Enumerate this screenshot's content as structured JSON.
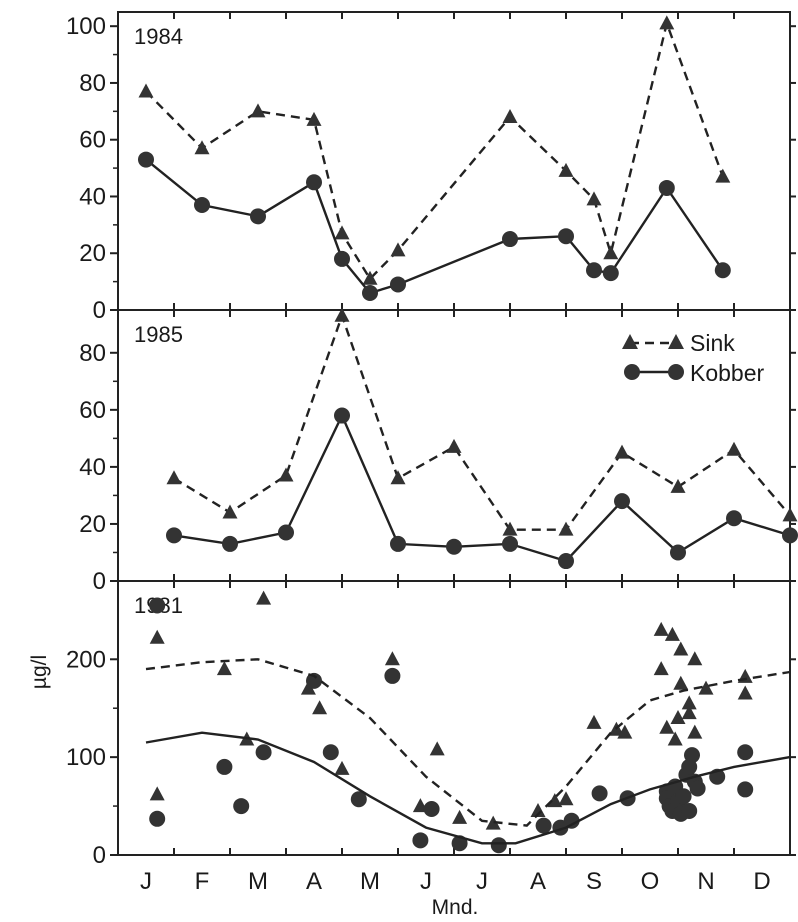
{
  "chart_data": [
    {
      "type": "line",
      "title": "1984",
      "x_type": "month",
      "ylim": [
        0,
        105
      ],
      "yticks": [
        "0",
        "20",
        "40",
        "60",
        "80",
        "100"
      ],
      "series": [
        {
          "name": "Sink",
          "marker": "triangle",
          "line": "dashed",
          "points": [
            [
              0.0,
              77
            ],
            [
              1.0,
              57
            ],
            [
              2.0,
              70
            ],
            [
              3.0,
              67
            ],
            [
              3.5,
              27
            ],
            [
              4.0,
              11
            ],
            [
              4.5,
              21
            ],
            [
              6.5,
              68
            ],
            [
              7.5,
              49
            ],
            [
              8.0,
              39
            ],
            [
              8.3,
              20
            ],
            [
              9.3,
              101
            ],
            [
              10.3,
              47
            ]
          ]
        },
        {
          "name": "Kobber",
          "marker": "circle",
          "line": "solid",
          "points": [
            [
              0.0,
              53
            ],
            [
              1.0,
              37
            ],
            [
              2.0,
              33
            ],
            [
              3.0,
              45
            ],
            [
              3.5,
              18
            ],
            [
              4.0,
              6
            ],
            [
              4.5,
              9
            ],
            [
              6.5,
              25
            ],
            [
              7.5,
              26
            ],
            [
              8.0,
              14
            ],
            [
              8.3,
              13
            ],
            [
              9.3,
              43
            ],
            [
              10.3,
              14
            ]
          ]
        }
      ]
    },
    {
      "type": "line",
      "title": "1985",
      "x_type": "month",
      "ylim": [
        0,
        95
      ],
      "yticks": [
        "0",
        "20",
        "40",
        "60",
        "80"
      ],
      "legend": {
        "position": "top-right",
        "entries": [
          "Sink",
          "Kobber"
        ]
      },
      "series": [
        {
          "name": "Sink",
          "marker": "triangle",
          "line": "dashed",
          "points": [
            [
              0.5,
              36
            ],
            [
              1.5,
              24
            ],
            [
              2.5,
              37
            ],
            [
              3.5,
              93
            ],
            [
              4.5,
              36
            ],
            [
              5.5,
              47
            ],
            [
              6.5,
              18
            ],
            [
              7.5,
              18
            ],
            [
              8.5,
              45
            ],
            [
              9.5,
              33
            ],
            [
              10.5,
              46
            ],
            [
              11.5,
              23
            ]
          ]
        },
        {
          "name": "Kobber",
          "marker": "circle",
          "line": "solid",
          "points": [
            [
              0.5,
              16
            ],
            [
              1.5,
              13
            ],
            [
              2.5,
              17
            ],
            [
              3.5,
              58
            ],
            [
              4.5,
              13
            ],
            [
              5.5,
              12
            ],
            [
              6.5,
              13
            ],
            [
              7.5,
              7
            ],
            [
              8.5,
              28
            ],
            [
              9.5,
              10
            ],
            [
              10.5,
              22
            ],
            [
              11.5,
              16
            ]
          ]
        }
      ]
    },
    {
      "type": "scatter",
      "title": "1981",
      "x_type": "month",
      "ylabel": "µg/l",
      "xlabel": "Mnd.",
      "ylim": [
        0,
        280
      ],
      "yticks": [
        "0",
        "100",
        "200"
      ],
      "categories": [
        "J",
        "F",
        "M",
        "A",
        "M",
        "J",
        "J",
        "A",
        "S",
        "O",
        "N",
        "D"
      ],
      "series": [
        {
          "name": "Sink",
          "marker": "triangle",
          "points": [
            [
              0.2,
              222
            ],
            [
              0.2,
              62
            ],
            [
              1.4,
              190
            ],
            [
              1.8,
              118
            ],
            [
              2.1,
              262
            ],
            [
              2.9,
              170
            ],
            [
              3.1,
              150
            ],
            [
              3.5,
              88
            ],
            [
              4.4,
              200
            ],
            [
              4.9,
              50
            ],
            [
              5.2,
              108
            ],
            [
              5.6,
              38
            ],
            [
              6.2,
              32
            ],
            [
              7.0,
              45
            ],
            [
              7.3,
              55
            ],
            [
              7.5,
              57
            ],
            [
              8.0,
              135
            ],
            [
              8.4,
              128
            ],
            [
              8.55,
              125
            ],
            [
              9.2,
              230
            ],
            [
              9.2,
              190
            ],
            [
              9.3,
              130
            ],
            [
              9.4,
              225
            ],
            [
              9.5,
              140
            ],
            [
              9.55,
              210
            ],
            [
              9.7,
              145
            ],
            [
              9.8,
              200
            ],
            [
              9.45,
              118
            ],
            [
              9.55,
              175
            ],
            [
              9.7,
              155
            ],
            [
              9.8,
              125
            ],
            [
              10.0,
              170
            ],
            [
              10.7,
              182
            ],
            [
              10.7,
              165
            ]
          ]
        },
        {
          "name": "Kobber",
          "marker": "circle",
          "points": [
            [
              0.2,
              255
            ],
            [
              0.2,
              37
            ],
            [
              1.4,
              90
            ],
            [
              1.7,
              50
            ],
            [
              2.1,
              105
            ],
            [
              3.0,
              178
            ],
            [
              3.3,
              105
            ],
            [
              3.8,
              57
            ],
            [
              4.4,
              183
            ],
            [
              4.9,
              15
            ],
            [
              5.1,
              47
            ],
            [
              5.6,
              12
            ],
            [
              6.3,
              10
            ],
            [
              7.1,
              30
            ],
            [
              7.4,
              28
            ],
            [
              7.6,
              35
            ],
            [
              8.1,
              63
            ],
            [
              8.6,
              58
            ],
            [
              9.3,
              65
            ],
            [
              9.3,
              58
            ],
            [
              9.35,
              50
            ],
            [
              9.4,
              45
            ],
            [
              9.45,
              70
            ],
            [
              9.5,
              55
            ],
            [
              9.55,
              42
            ],
            [
              9.6,
              60
            ],
            [
              9.65,
              82
            ],
            [
              9.7,
              90
            ],
            [
              9.75,
              102
            ],
            [
              9.8,
              75
            ],
            [
              9.85,
              68
            ],
            [
              9.7,
              45
            ],
            [
              10.2,
              80
            ],
            [
              10.7,
              105
            ],
            [
              10.7,
              67
            ]
          ]
        },
        {
          "name": "Sink",
          "type": "line",
          "line": "dashed",
          "points": [
            [
              0,
              190
            ],
            [
              1,
              197
            ],
            [
              2,
              200
            ],
            [
              3,
              183
            ],
            [
              4,
              140
            ],
            [
              5,
              80
            ],
            [
              6,
              35
            ],
            [
              6.8,
              30
            ],
            [
              7.5,
              70
            ],
            [
              8.3,
              125
            ],
            [
              9.0,
              158
            ],
            [
              9.6,
              168
            ],
            [
              10.5,
              178
            ],
            [
              11.5,
              187
            ]
          ]
        },
        {
          "name": "Kobber",
          "type": "line",
          "line": "solid",
          "points": [
            [
              0,
              115
            ],
            [
              1,
              125
            ],
            [
              2,
              118
            ],
            [
              3,
              95
            ],
            [
              4,
              60
            ],
            [
              5,
              28
            ],
            [
              6,
              12
            ],
            [
              6.6,
              12
            ],
            [
              7.5,
              28
            ],
            [
              8.3,
              52
            ],
            [
              9.0,
              67
            ],
            [
              9.8,
              80
            ],
            [
              10.5,
              90
            ],
            [
              11.5,
              100
            ]
          ]
        }
      ]
    }
  ],
  "legend_labels": {
    "sink": "Sink",
    "kobber": "Kobber"
  },
  "month_labels": [
    "J",
    "F",
    "M",
    "A",
    "M",
    "J",
    "J",
    "A",
    "S",
    "O",
    "N",
    "D"
  ],
  "axis_titles": {
    "y": "µg/l",
    "x": "Mnd."
  }
}
